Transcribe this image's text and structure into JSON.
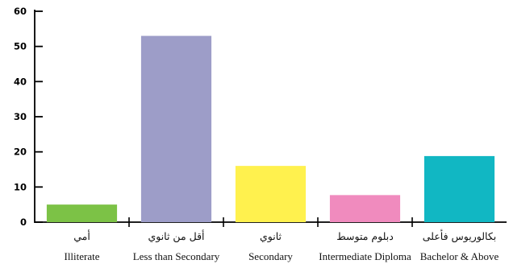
{
  "chart_data": {
    "type": "bar",
    "title": "",
    "xlabel": "",
    "ylabel": "",
    "ylim": [
      0,
      60
    ],
    "yticks": [
      0,
      10,
      20,
      30,
      40,
      50,
      60
    ],
    "grid": false,
    "categories": [
      {
        "ar": "أمي",
        "en": "Illiterate"
      },
      {
        "ar": "أقل من ثانوي",
        "en": "Less than Secondary"
      },
      {
        "ar": "ثانوي",
        "en": "Secondary"
      },
      {
        "ar": "دبلوم متوسط",
        "en": "Intermediate Diploma"
      },
      {
        "ar": "بكالوريوس فأعلى",
        "en": "Bachelor & Above"
      }
    ],
    "values": [
      5,
      53,
      16,
      7.7,
      18.8
    ],
    "colors": [
      "#7cc246",
      "#9d9dc8",
      "#fff14e",
      "#f08bbe",
      "#11b7c3"
    ]
  }
}
